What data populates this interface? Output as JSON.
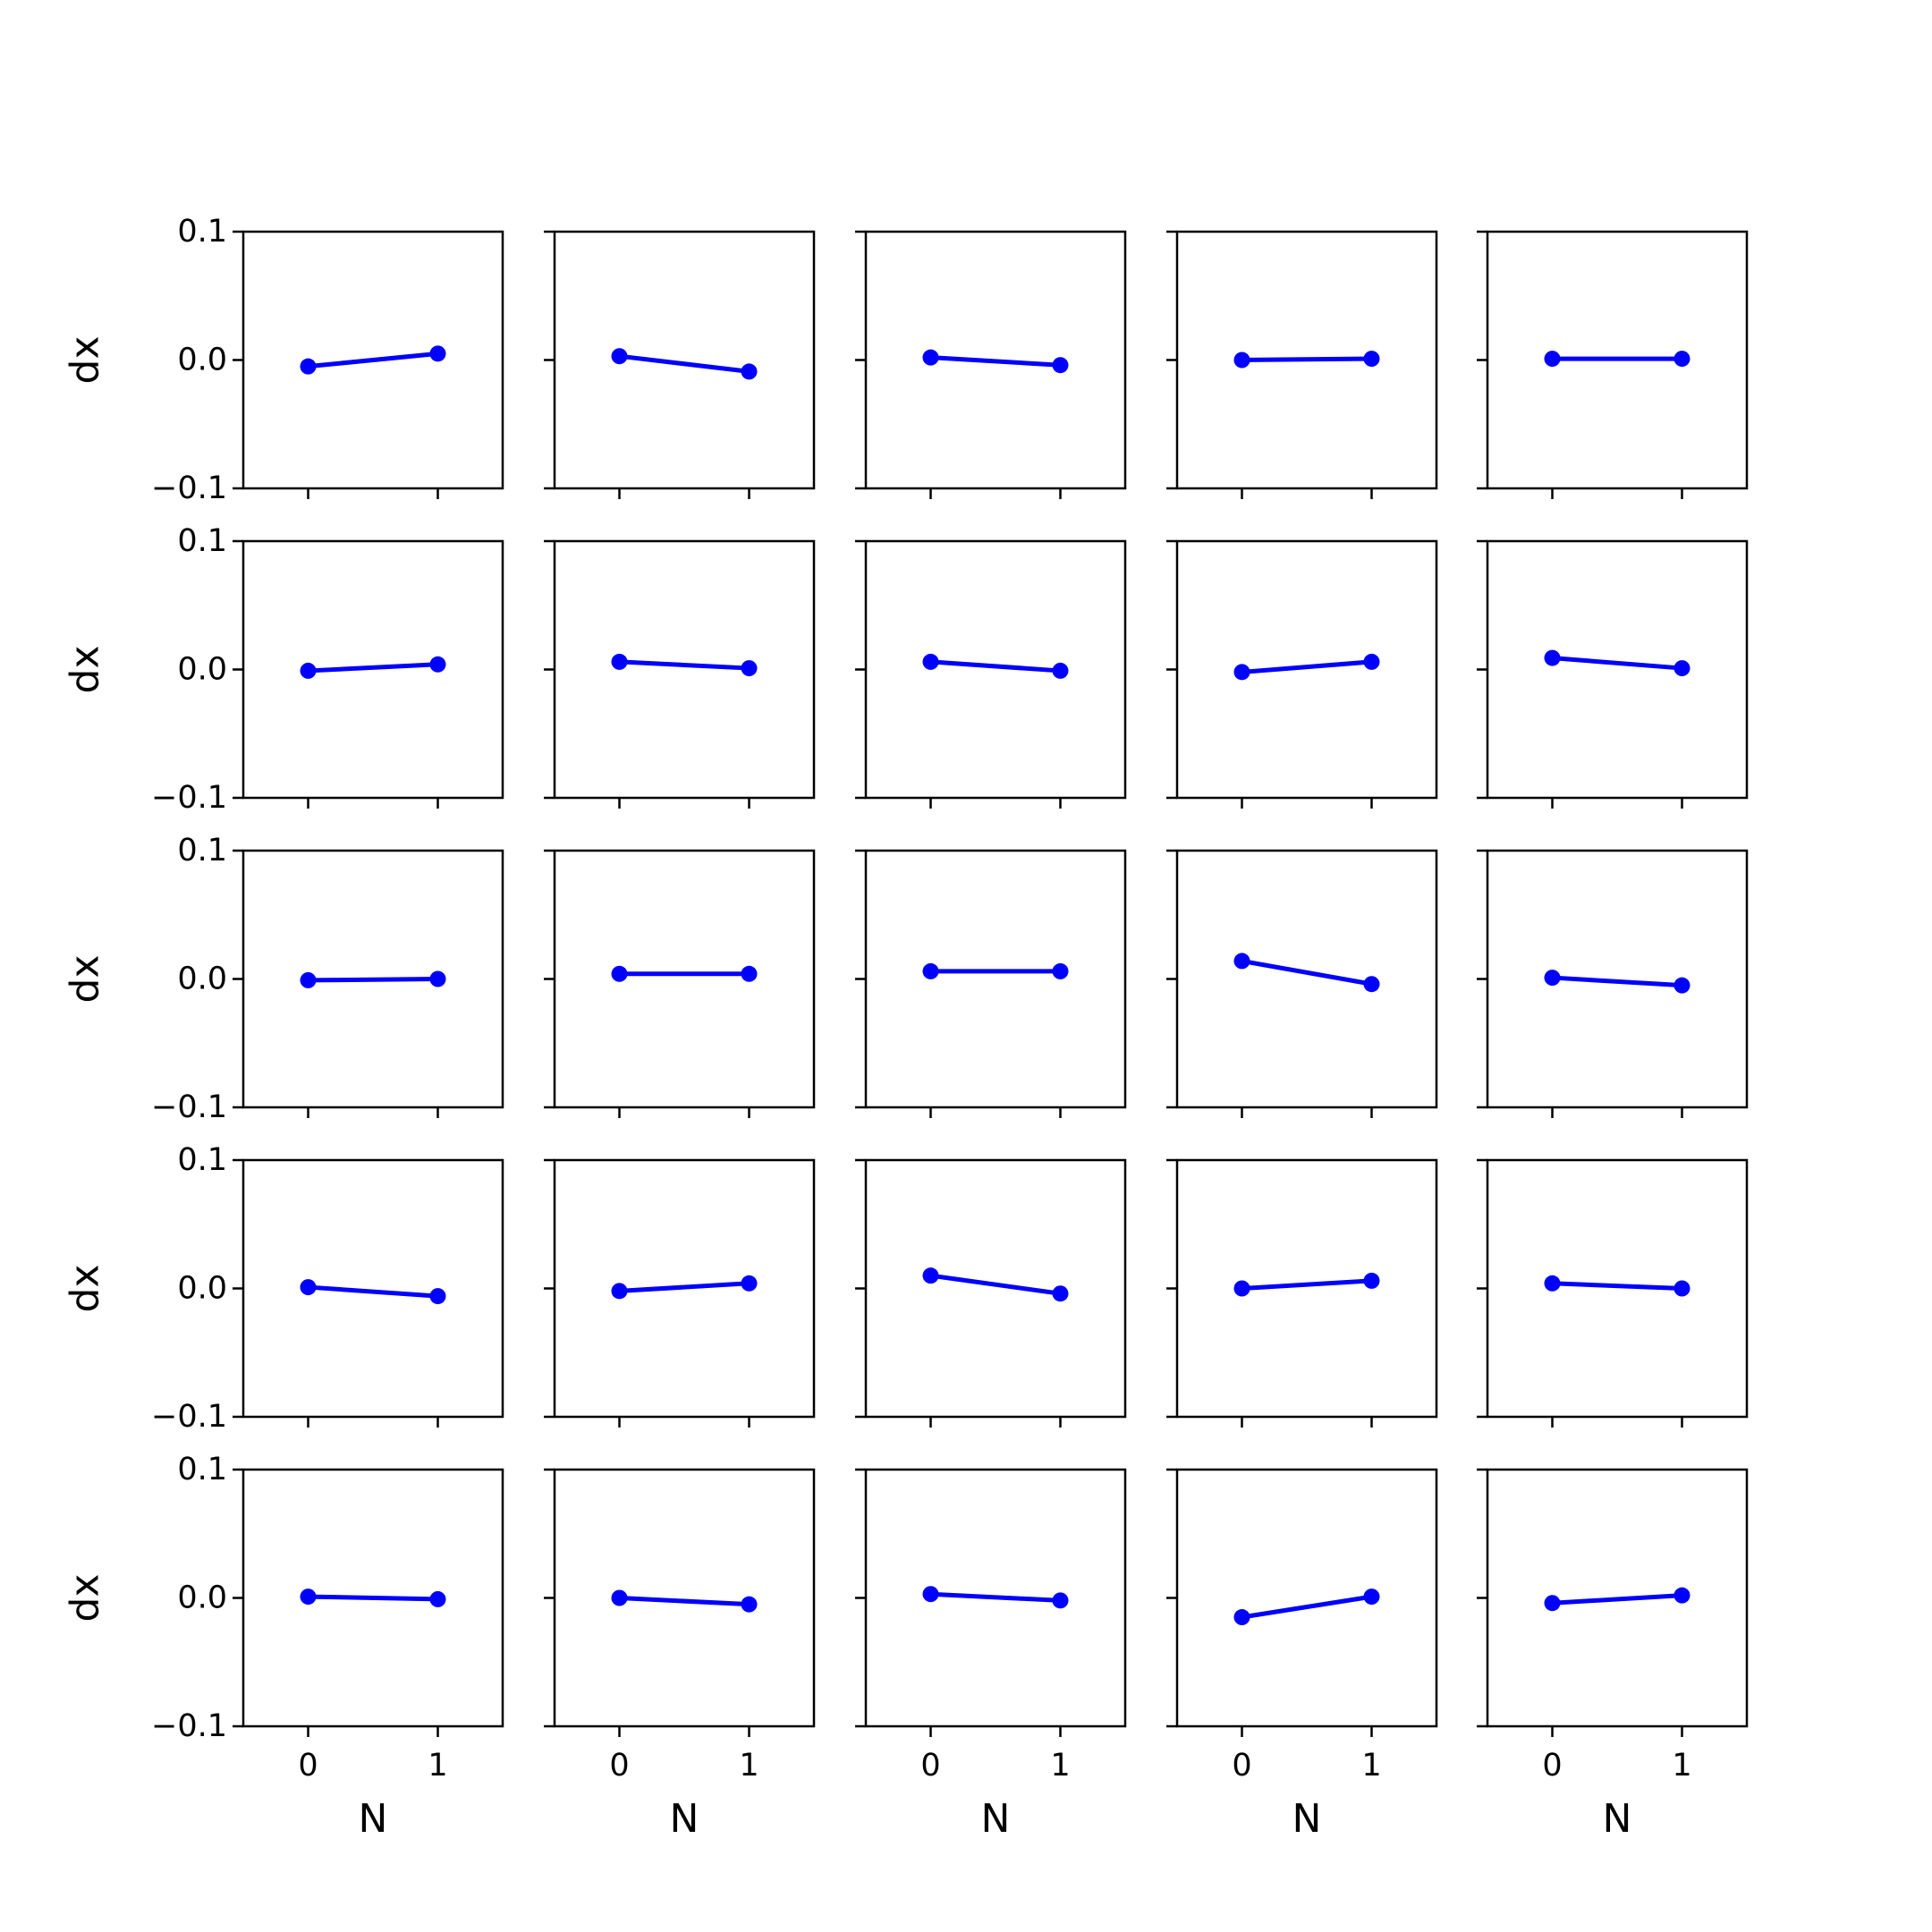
{
  "colors": {
    "line": "#0000ff",
    "axes": "#000000",
    "background": "#ffffff"
  },
  "chart_data": {
    "type": "line",
    "layout": "5x5 grid of subplots, shared x and y axes",
    "xlabel": "N",
    "ylabel": "dx",
    "x": [
      0,
      1
    ],
    "xlim": [
      -0.5,
      1.5
    ],
    "ylim": [
      -0.1,
      0.1
    ],
    "x_tick_labels": [
      "0",
      "1"
    ],
    "y_tick_labels": [
      "0.1",
      "0.0",
      "−0.1"
    ],
    "y_tick_values": [
      0.1,
      0.0,
      -0.1
    ],
    "marker": "circle",
    "grid": false,
    "legend": "none",
    "subplots": [
      [
        [
          -0.005,
          0.005
        ],
        [
          0.003,
          -0.009
        ],
        [
          0.002,
          -0.004
        ],
        [
          0.0,
          0.001
        ],
        [
          0.001,
          0.001
        ]
      ],
      [
        [
          -0.001,
          0.004
        ],
        [
          0.006,
          0.001
        ],
        [
          0.006,
          -0.001
        ],
        [
          -0.002,
          0.006
        ],
        [
          0.009,
          0.001
        ]
      ],
      [
        [
          -0.001,
          0.0
        ],
        [
          0.004,
          0.004
        ],
        [
          0.006,
          0.006
        ],
        [
          0.014,
          -0.004
        ],
        [
          0.001,
          -0.005
        ]
      ],
      [
        [
          0.001,
          -0.006
        ],
        [
          -0.002,
          0.004
        ],
        [
          0.01,
          -0.004
        ],
        [
          0.0,
          0.006
        ],
        [
          0.004,
          0.0
        ]
      ],
      [
        [
          0.001,
          -0.001
        ],
        [
          0.0,
          -0.005
        ],
        [
          0.003,
          -0.002
        ],
        [
          -0.015,
          0.001
        ],
        [
          -0.004,
          0.002
        ]
      ]
    ]
  }
}
